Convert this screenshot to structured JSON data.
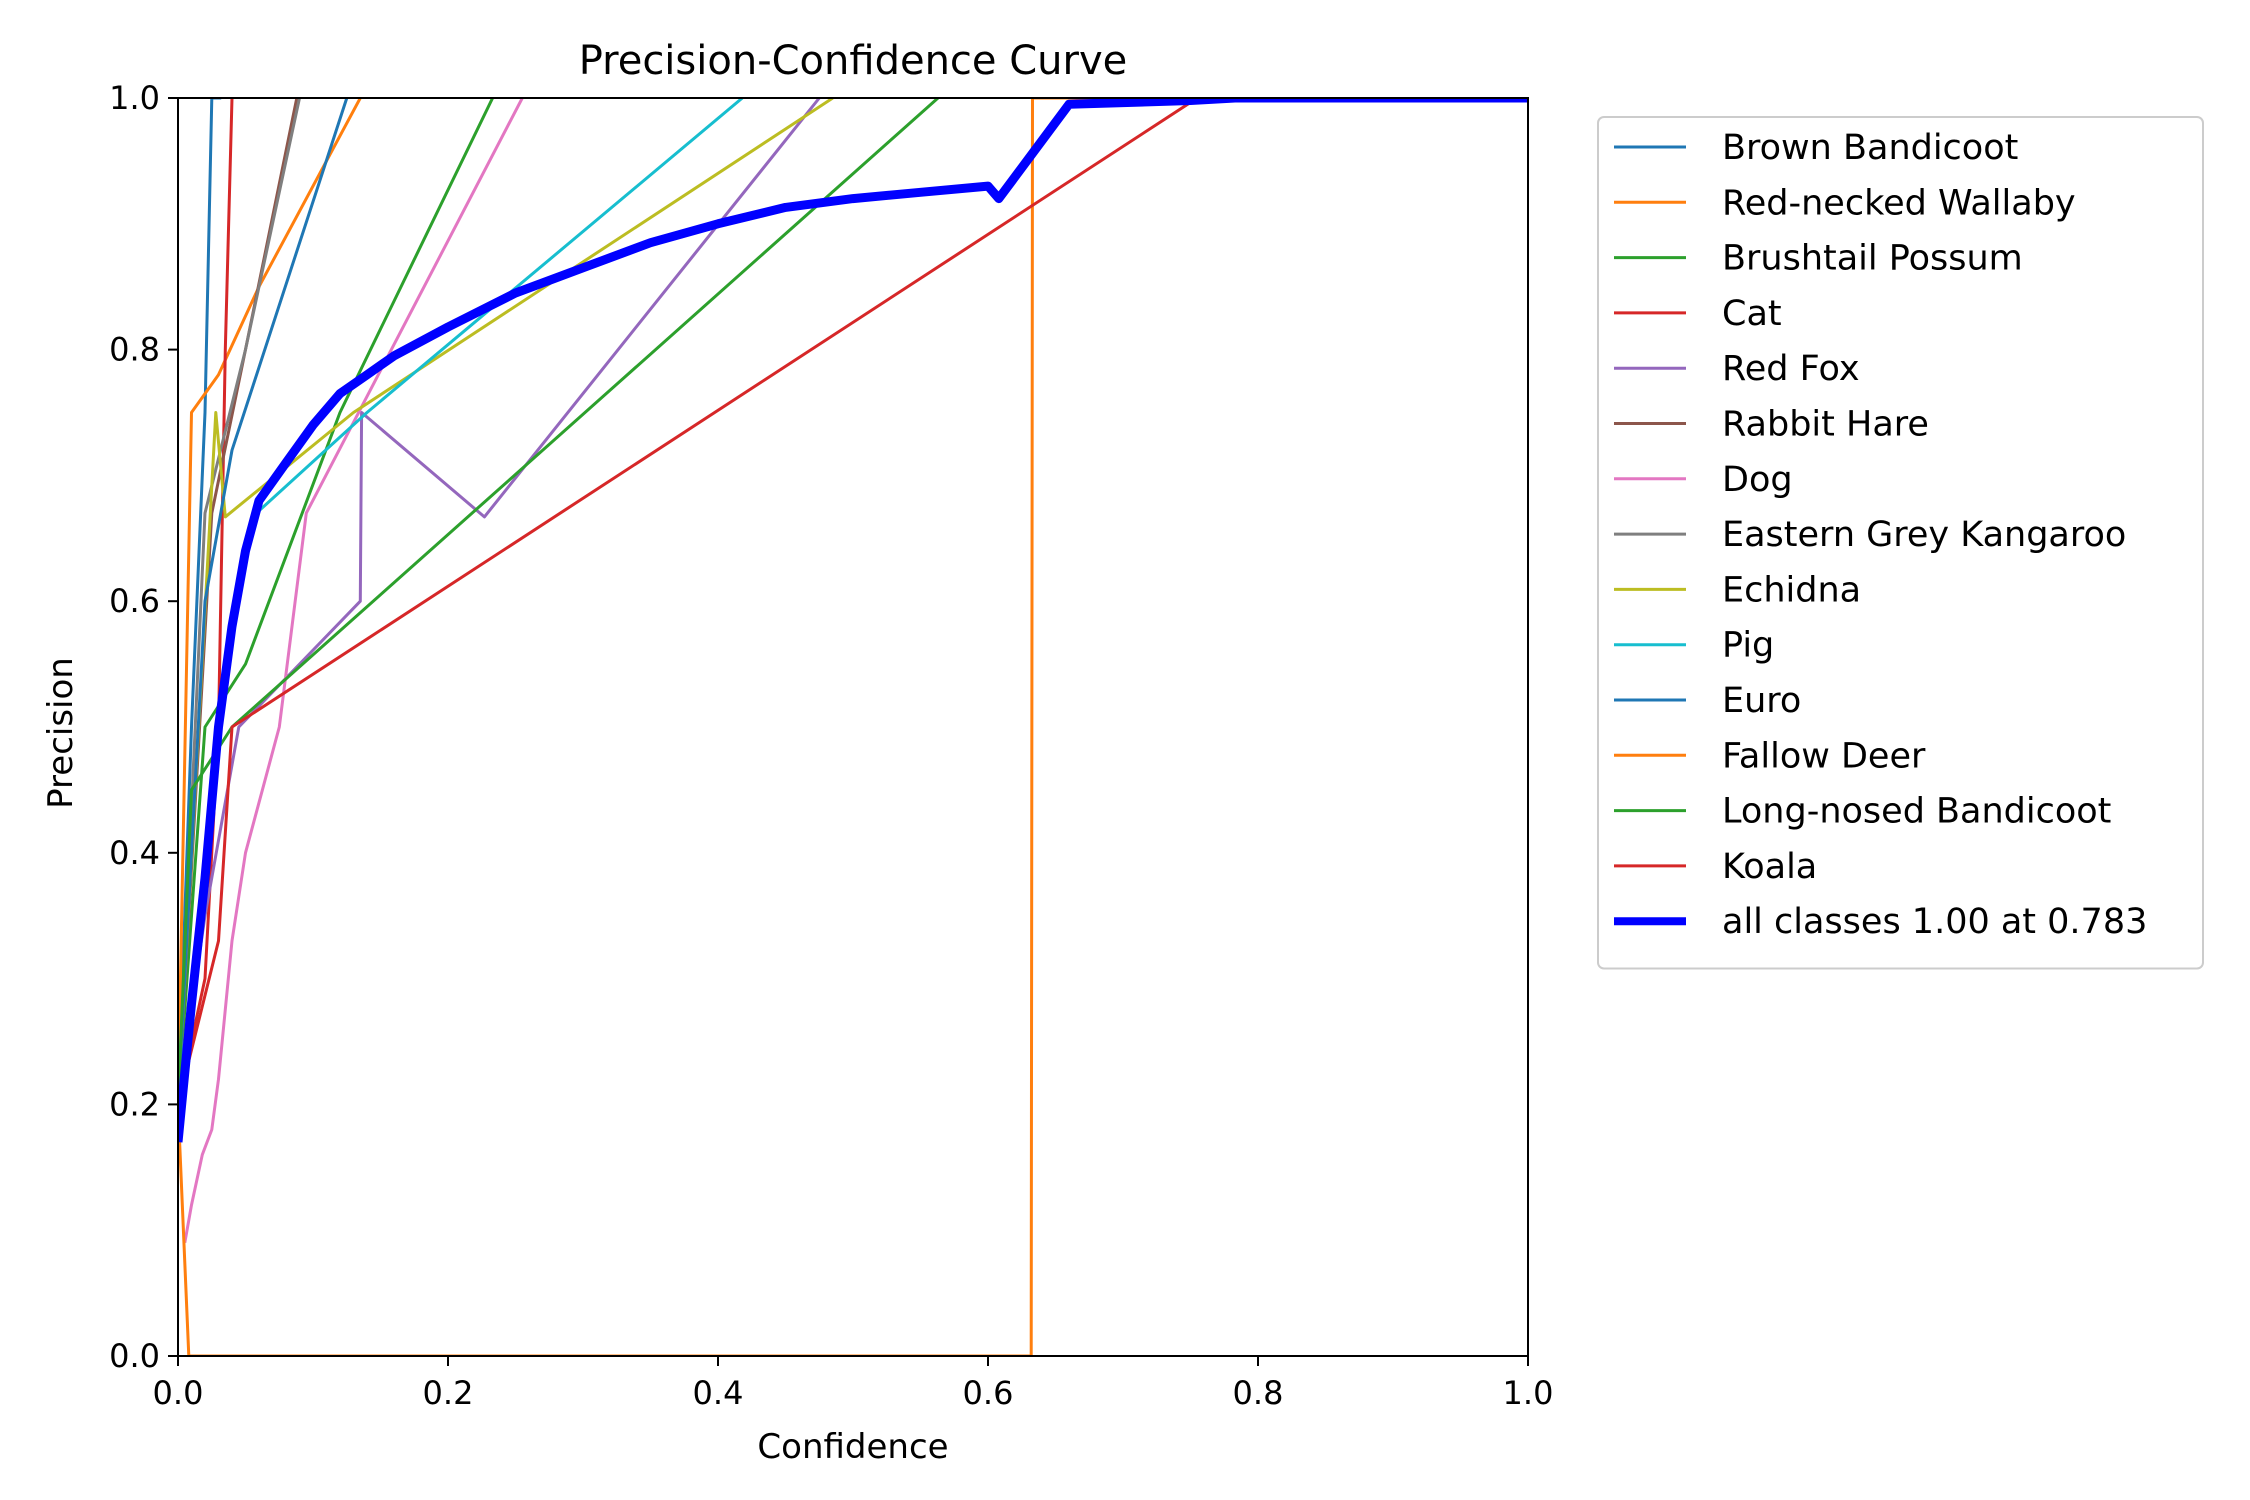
{
  "chart_data": {
    "type": "line",
    "title": "Precision-Confidence Curve",
    "xlabel": "Confidence",
    "ylabel": "Precision",
    "xlim": [
      0.0,
      1.0
    ],
    "ylim": [
      0.0,
      1.0
    ],
    "xticks": [
      "0.0",
      "0.2",
      "0.4",
      "0.6",
      "0.8",
      "1.0"
    ],
    "yticks": [
      "0.0",
      "0.2",
      "0.4",
      "0.6",
      "0.8",
      "1.0"
    ],
    "grid": false,
    "legend_position": "outside-right-top",
    "series": [
      {
        "name": "Brown Bandicoot",
        "color": "#1f77b4",
        "width": 3,
        "x": [
          0.0,
          0.01,
          0.02,
          0.025,
          0.032
        ],
        "y": [
          0.2,
          0.5,
          0.75,
          1.0,
          1.0
        ]
      },
      {
        "name": "Red-necked Wallaby",
        "color": "#ff7f0e",
        "width": 3,
        "x": [
          0.0,
          0.01,
          0.03,
          0.06,
          0.135
        ],
        "y": [
          0.2,
          0.75,
          0.78,
          0.85,
          1.0
        ]
      },
      {
        "name": "Brushtail Possum",
        "color": "#2ca02c",
        "width": 3,
        "x": [
          0.0,
          0.02,
          0.05,
          0.12,
          0.233
        ],
        "y": [
          0.2,
          0.5,
          0.55,
          0.75,
          1.0
        ]
      },
      {
        "name": "Cat",
        "color": "#d62728",
        "width": 3,
        "x": [
          0.0,
          0.02,
          0.03,
          0.035,
          0.04
        ],
        "y": [
          0.2,
          0.3,
          0.5,
          0.8,
          1.0
        ]
      },
      {
        "name": "Red Fox",
        "color": "#9467bd",
        "width": 3,
        "x": [
          0.0,
          0.02,
          0.045,
          0.135,
          0.136,
          0.227,
          0.475
        ],
        "y": [
          0.2,
          0.35,
          0.5,
          0.6,
          0.75,
          0.667,
          1.0
        ]
      },
      {
        "name": "Rabbit Hare",
        "color": "#8c564b",
        "width": 3,
        "x": [
          0.0,
          0.025,
          0.05,
          0.088
        ],
        "y": [
          0.2,
          0.67,
          0.8,
          1.0
        ]
      },
      {
        "name": "Dog",
        "color": "#e377c2",
        "width": 3,
        "x": [
          0.005,
          0.01,
          0.018,
          0.025,
          0.03,
          0.04,
          0.05,
          0.075,
          0.095,
          0.255
        ],
        "y": [
          0.09,
          0.12,
          0.16,
          0.18,
          0.22,
          0.33,
          0.4,
          0.5,
          0.67,
          1.0
        ]
      },
      {
        "name": "Eastern Grey Kangaroo",
        "color": "#7f7f7f",
        "width": 3,
        "x": [
          0.0,
          0.02,
          0.05,
          0.09
        ],
        "y": [
          0.2,
          0.67,
          0.8,
          1.0
        ]
      },
      {
        "name": "Echidna",
        "color": "#bcbd22",
        "width": 3,
        "x": [
          0.0,
          0.028,
          0.035,
          0.13,
          0.485
        ],
        "y": [
          0.2,
          0.75,
          0.667,
          0.75,
          1.0
        ]
      },
      {
        "name": "Pig",
        "color": "#17becf",
        "width": 3,
        "x": [
          0.0,
          0.03,
          0.055,
          0.14,
          0.418
        ],
        "y": [
          0.2,
          0.5,
          0.667,
          0.75,
          1.0
        ]
      },
      {
        "name": "Euro",
        "color": "#1f77b4",
        "width": 3,
        "x": [
          0.0,
          0.02,
          0.04,
          0.125
        ],
        "y": [
          0.2,
          0.6,
          0.72,
          1.0
        ]
      },
      {
        "name": "Fallow Deer",
        "color": "#ff7f0e",
        "width": 3,
        "x": [
          0.0,
          0.008,
          0.009,
          0.632,
          0.633,
          0.634,
          1.0
        ],
        "y": [
          0.2,
          0.0,
          0.0,
          0.0,
          1.0,
          1.0,
          1.0
        ]
      },
      {
        "name": "Long-nosed Bandicoot",
        "color": "#2ca02c",
        "width": 3,
        "x": [
          0.0,
          0.01,
          0.04,
          0.563
        ],
        "y": [
          0.2,
          0.45,
          0.5,
          1.0
        ]
      },
      {
        "name": "Koala",
        "color": "#d62728",
        "width": 3,
        "x": [
          0.0,
          0.03,
          0.04,
          0.755,
          1.0
        ],
        "y": [
          0.2,
          0.33,
          0.5,
          1.0,
          1.0
        ]
      },
      {
        "name": "all classes 1.00 at 0.783",
        "color": "#0000ff",
        "width": 9,
        "x": [
          0.0,
          0.01,
          0.02,
          0.03,
          0.04,
          0.05,
          0.06,
          0.08,
          0.1,
          0.12,
          0.14,
          0.16,
          0.2,
          0.25,
          0.3,
          0.35,
          0.4,
          0.45,
          0.5,
          0.55,
          0.6,
          0.608,
          0.66,
          0.75,
          0.783,
          1.0
        ],
        "y": [
          0.17,
          0.28,
          0.38,
          0.5,
          0.58,
          0.64,
          0.68,
          0.71,
          0.74,
          0.765,
          0.78,
          0.795,
          0.818,
          0.845,
          0.865,
          0.885,
          0.9,
          0.913,
          0.92,
          0.925,
          0.93,
          0.92,
          0.995,
          0.998,
          1.0,
          1.0
        ]
      }
    ]
  }
}
